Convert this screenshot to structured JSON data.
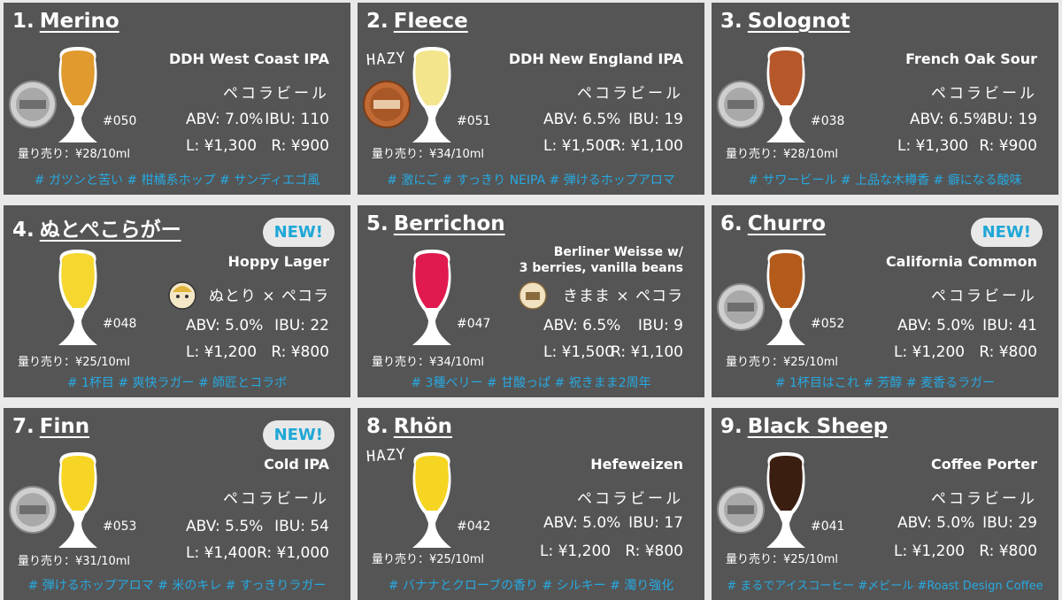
{
  "glass_colors": {
    "merino": "#E09A2E",
    "fleece": "#F3E58B",
    "solognot": "#B6582A",
    "nutori": "#F6D730",
    "berrichon": "#E0194F",
    "churro": "#B45A1B",
    "finn": "#F7D524",
    "rhon": "#F6D522",
    "blacksheep": "#3A1E10"
  },
  "colors": {
    "card_bg": "#555555",
    "tag_blue": "#27A9E1",
    "badge_bg": "#E8E8E8"
  },
  "badge": "NEW!",
  "beers": [
    {
      "num": "1.",
      "name": "Merino",
      "style": "DDH West Coast IPA",
      "brewer": "ペコラビール",
      "code": "#050",
      "abv": "ABV: 7.0%",
      "ibu": "IBU: 110",
      "large": "L: ¥1,300",
      "regular": "R: ¥900",
      "measure": "量り売り：¥28/10ml",
      "tags": "# ガツンと苦い # 柑橘系ホップ # サンディエゴ風"
    },
    {
      "num": "2.",
      "name": "Fleece",
      "style": "DDH New England IPA",
      "brewer": "ペコラビール",
      "code": "#051",
      "abv": "ABV: 6.5%",
      "ibu": "IBU: 19",
      "large": "L: ¥1,500",
      "regular": "R: ¥1,100",
      "measure": "量り売り：¥34/10ml",
      "tags": "# 激にご # すっきり NEIPA # 弾けるホップアロマ",
      "hazy": "HAZY"
    },
    {
      "num": "3.",
      "name": "Solognot",
      "style": "French Oak Sour",
      "brewer": "ペコラビール",
      "code": "#038",
      "abv": "ABV: 6.5%",
      "ibu": "IBU: 19",
      "large": "L: ¥1,300",
      "regular": "R: ¥900",
      "measure": "量り売り：¥28/10ml",
      "tags": "# サワービール # 上品な木樽香 # 癖になる酸味"
    },
    {
      "num": "4.",
      "name": "ぬとぺこらがー",
      "style": "Hoppy Lager",
      "brewer": "ぬとり × ペコラ",
      "code": "#048",
      "abv": "ABV: 5.0%",
      "ibu": "IBU: 22",
      "large": "L: ¥1,200",
      "regular": "R: ¥800",
      "measure": "量り売り：¥25/10ml",
      "tags": "# 1杯目 # 爽快ラガー # 師匠とコラボ"
    },
    {
      "num": "5.",
      "name": "Berrichon",
      "style1": "Berliner Weisse w/",
      "style2": "3 berries, vanilla beans",
      "brewer": "きまま × ペコラ",
      "code": "#047",
      "abv": "ABV: 6.5%",
      "ibu": "IBU: 9",
      "large": "L: ¥1,500",
      "regular": "R: ¥1,100",
      "measure": "量り売り：¥34/10ml",
      "tags": "# 3種ベリー # 甘酸っぱ # 祝きまま2周年"
    },
    {
      "num": "6.",
      "name": "Churro",
      "style": "California Common",
      "brewer": "ペコラビール",
      "code": "#052",
      "abv": "ABV: 5.0%",
      "ibu": "IBU: 41",
      "large": "L: ¥1,200",
      "regular": "R: ¥800",
      "measure": "量り売り：¥25/10ml",
      "tags": "# 1杯目はこれ # 芳醇 # 麦香るラガー"
    },
    {
      "num": "7.",
      "name": "Finn",
      "style": "Cold IPA",
      "brewer": "ペコラビール",
      "code": "#053",
      "abv": "ABV: 5.5%",
      "ibu": "IBU: 54",
      "large": "L: ¥1,400",
      "regular": "R: ¥1,000",
      "measure": "量り売り：¥31/10ml",
      "tags": "# 弾けるホップアロマ # 米のキレ # すっきりラガー"
    },
    {
      "num": "8.",
      "name": "Rhön",
      "style": "Hefeweizen",
      "brewer": "ペコラビール",
      "code": "#042",
      "abv": "ABV: 5.0%",
      "ibu": "IBU: 17",
      "large": "L: ¥1,200",
      "regular": "R: ¥800",
      "measure": "量り売り：¥25/10ml",
      "tags": "# バナナとクローブの香り # シルキー # 濁り強化",
      "hazy": "HAZY"
    },
    {
      "num": "9.",
      "name": "Black Sheep",
      "style": "Coffee Porter",
      "brewer": "ペコラビール",
      "code": "#041",
      "abv": "ABV: 5.0%",
      "ibu": "IBU: 29",
      "large": "L: ¥1,200",
      "regular": "R: ¥800",
      "measure": "量り売り：¥25/10ml",
      "tags": "# まるでアイスコーヒー #〆ビール #Roast Design Coffee"
    }
  ]
}
